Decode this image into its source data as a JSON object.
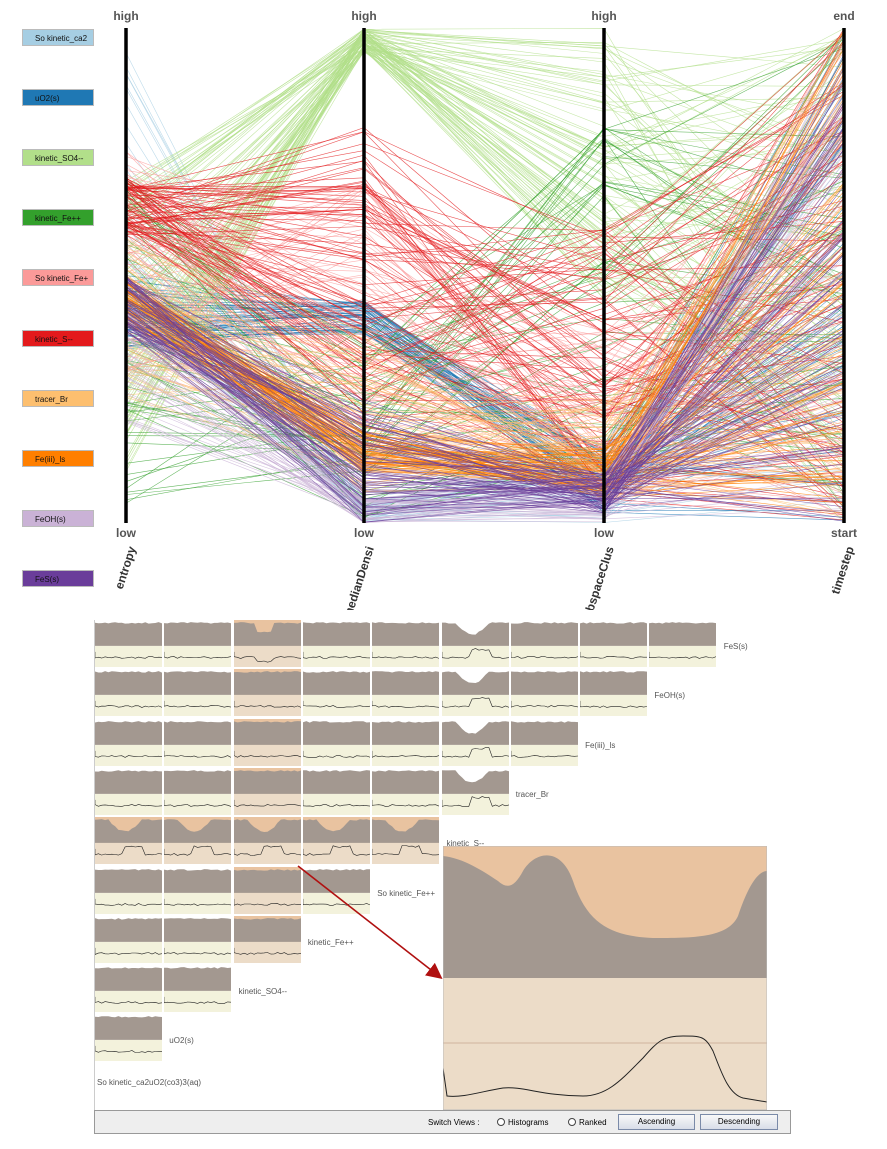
{
  "legend": [
    {
      "label": "So kinetic_ca2",
      "color": "#a6cee3"
    },
    {
      "label": "uO2(s)",
      "color": "#1f78b4"
    },
    {
      "label": "kinetic_SO4--",
      "color": "#b2df8a"
    },
    {
      "label": "kinetic_Fe++",
      "color": "#33a02c"
    },
    {
      "label": "So kinetic_Fe+",
      "color": "#fb9a99"
    },
    {
      "label": "kinetic_S--",
      "color": "#e31a1c"
    },
    {
      "label": "tracer_Br",
      "color": "#fdbf6f"
    },
    {
      "label": "Fe(iii)_ls",
      "color": "#ff7f00"
    },
    {
      "label": "FeOH(s)",
      "color": "#cab2d6"
    },
    {
      "label": "FeS(s)",
      "color": "#6a3d9a"
    }
  ],
  "chart_data": {
    "type": "parallel-coordinates",
    "axes": [
      {
        "name": "entropy",
        "top_label": "high",
        "bottom_label": "low"
      },
      {
        "name": "medianDensi",
        "top_label": "high",
        "bottom_label": "low"
      },
      {
        "name": "subspaceClus",
        "top_label": "high",
        "bottom_label": "low"
      },
      {
        "name": "timestep",
        "top_label": "end",
        "bottom_label": "start"
      }
    ]
  },
  "matrix": {
    "row_labels": [
      "FeS(s)",
      "FeOH(s)",
      "Fe(iii)_ls",
      "tracer_Br",
      "kinetic_S--",
      "So kinetic_Fe++",
      "kinetic_Fe++",
      "kinetic_SO4--",
      "uO2(s)",
      "So kinetic_ca2uO2(co3)3(aq)"
    ]
  },
  "bottom_bar": {
    "switch_label": "Switch Views :",
    "option_histograms": "Histograms",
    "option_ranked": "Ranked",
    "ascending": "Ascending",
    "descending": "Descending"
  },
  "colors": {
    "histogram_fill": "#a39890",
    "histogram_bg": "#f3f2dc",
    "highlight_bg": "#e9c3a0",
    "highlight_lower": "#ecdcc8",
    "arrow": "#b01010"
  }
}
